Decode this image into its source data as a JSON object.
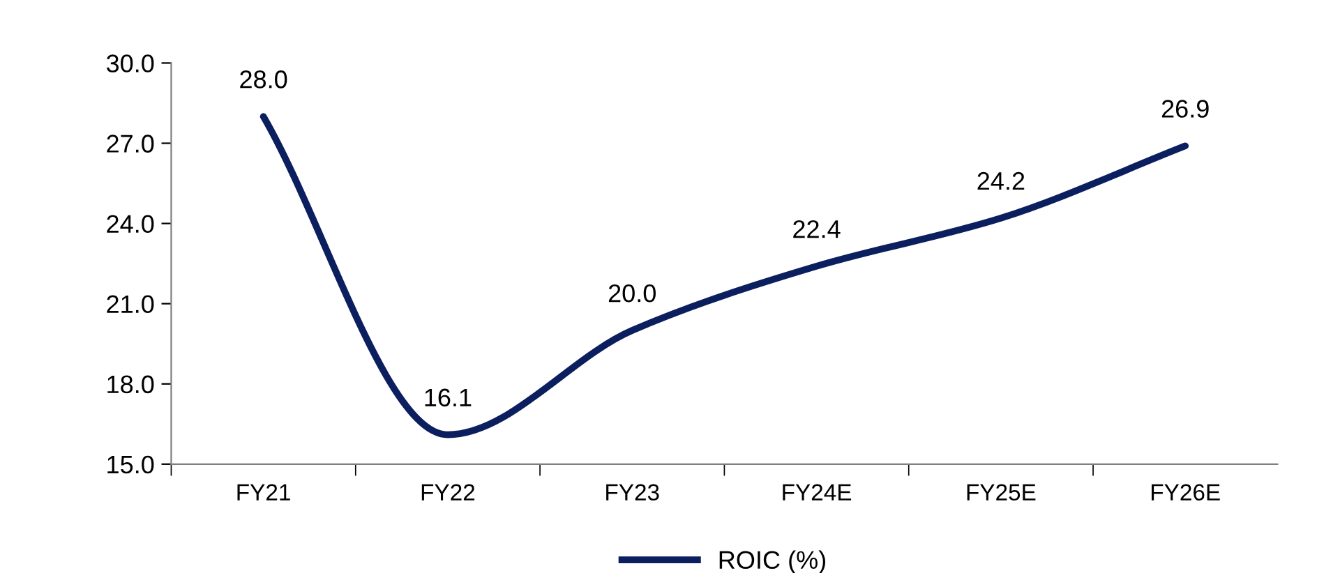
{
  "chart_data": {
    "type": "line",
    "categories": [
      "FY21",
      "FY22",
      "FY23",
      "FY24E",
      "FY25E",
      "FY26E"
    ],
    "series": [
      {
        "name": "ROIC (%)",
        "color": "#0b1f5e",
        "values": [
          28.0,
          16.1,
          20.0,
          22.4,
          24.2,
          26.9
        ],
        "value_labels": [
          "28.0",
          "16.1",
          "20.0",
          "22.4",
          "24.2",
          "26.9"
        ]
      }
    ],
    "ylim": [
      15,
      30
    ],
    "yticks": [
      {
        "value": 15,
        "label": "15.0"
      },
      {
        "value": 18,
        "label": "18.0"
      },
      {
        "value": 21,
        "label": "21.0"
      },
      {
        "value": 24,
        "label": "24.0"
      },
      {
        "value": 27,
        "label": "27.0"
      },
      {
        "value": 30,
        "label": "30.0"
      }
    ],
    "legend": "bottom",
    "grid": false,
    "marker": "none",
    "line_style": "solid"
  }
}
